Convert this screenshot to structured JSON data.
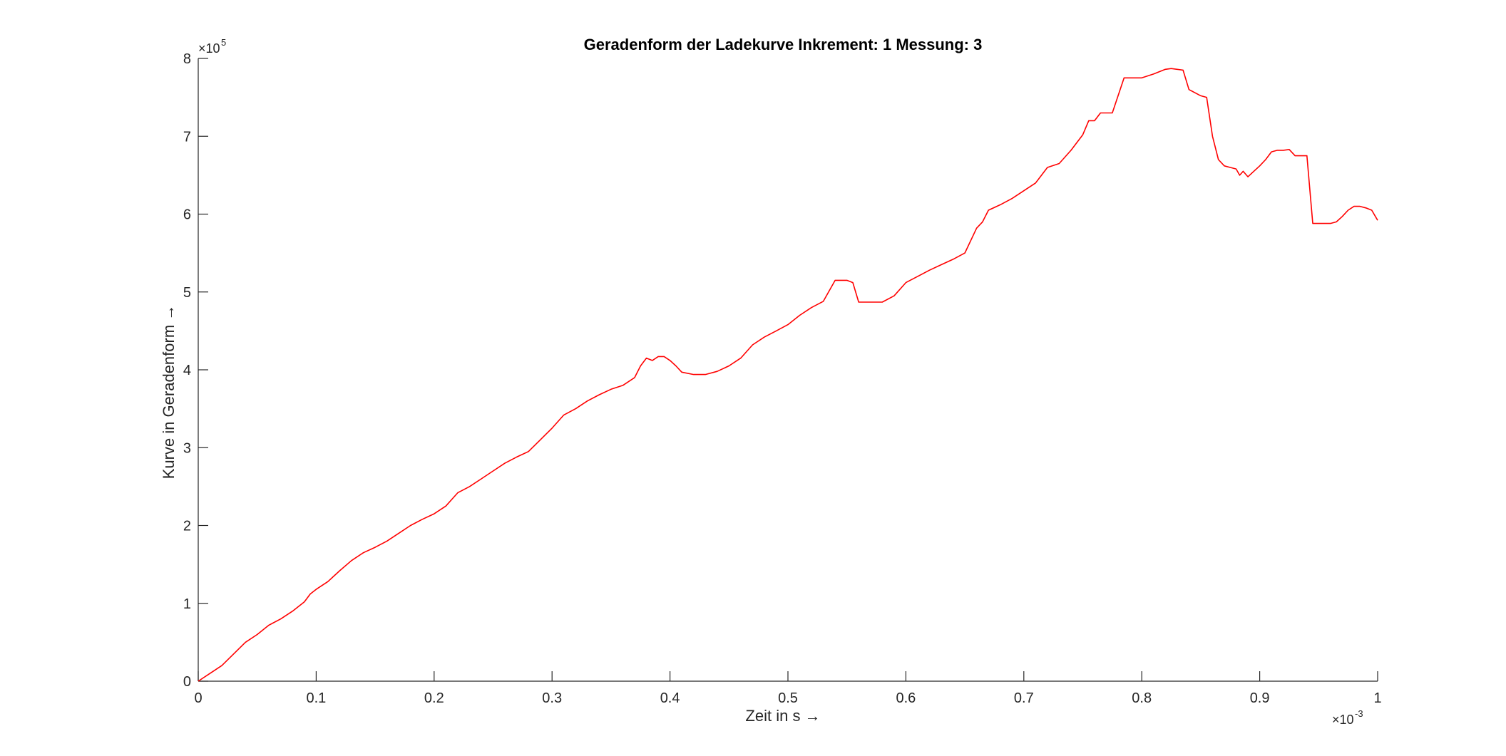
{
  "chart_data": {
    "type": "line",
    "title": "Geradenform der Ladekurve Inkrement: 1 Messung: 3",
    "xlabel": "Zeit in s →",
    "ylabel": "Kurve in Geradenform →",
    "x_exponent": {
      "base": "×10",
      "power": "-3"
    },
    "y_exponent": {
      "base": "×10",
      "power": "5"
    },
    "xlim": [
      0,
      1
    ],
    "ylim": [
      0,
      8
    ],
    "xticks": [
      0,
      0.1,
      0.2,
      0.3,
      0.4,
      0.5,
      0.6,
      0.7,
      0.8,
      0.9,
      1
    ],
    "xtick_labels": [
      "0",
      "0.1",
      "0.2",
      "0.3",
      "0.4",
      "0.5",
      "0.6",
      "0.7",
      "0.8",
      "0.9",
      "1"
    ],
    "yticks": [
      0,
      1,
      2,
      3,
      4,
      5,
      6,
      7,
      8
    ],
    "ytick_labels": [
      "0",
      "1",
      "2",
      "3",
      "4",
      "5",
      "6",
      "7",
      "8"
    ],
    "grid": false,
    "line_color": "#ff0000",
    "axis_color": "#262626",
    "series": [
      {
        "x": [
          0,
          0.01,
          0.02,
          0.03,
          0.04,
          0.05,
          0.06,
          0.07,
          0.08,
          0.09,
          0.095,
          0.1,
          0.11,
          0.115,
          0.12,
          0.13,
          0.14,
          0.15,
          0.16,
          0.17,
          0.18,
          0.19,
          0.2,
          0.21,
          0.22,
          0.23,
          0.24,
          0.25,
          0.26,
          0.27,
          0.28,
          0.29,
          0.3,
          0.31,
          0.32,
          0.33,
          0.34,
          0.35,
          0.36,
          0.37,
          0.375,
          0.38,
          0.385,
          0.39,
          0.395,
          0.4,
          0.405,
          0.41,
          0.42,
          0.43,
          0.44,
          0.45,
          0.46,
          0.47,
          0.48,
          0.49,
          0.5,
          0.51,
          0.52,
          0.53,
          0.54,
          0.545,
          0.55,
          0.555,
          0.56,
          0.57,
          0.58,
          0.59,
          0.6,
          0.61,
          0.62,
          0.63,
          0.64,
          0.65,
          0.66,
          0.665,
          0.67,
          0.68,
          0.69,
          0.7,
          0.71,
          0.72,
          0.73,
          0.74,
          0.75,
          0.755,
          0.76,
          0.765,
          0.775,
          0.785,
          0.795,
          0.8,
          0.81,
          0.82,
          0.825,
          0.83,
          0.835,
          0.84,
          0.85,
          0.855,
          0.86,
          0.865,
          0.87,
          0.875,
          0.88,
          0.883,
          0.886,
          0.89,
          0.895,
          0.9,
          0.905,
          0.91,
          0.915,
          0.92,
          0.925,
          0.93,
          0.935,
          0.94,
          0.945,
          0.95,
          0.96,
          0.965,
          0.97,
          0.975,
          0.98,
          0.985,
          0.99,
          0.995,
          1.0
        ],
        "y": [
          0,
          0.1,
          0.2,
          0.35,
          0.5,
          0.6,
          0.72,
          0.8,
          0.9,
          1.02,
          1.12,
          1.18,
          1.28,
          1.35,
          1.42,
          1.55,
          1.65,
          1.72,
          1.8,
          1.9,
          2.0,
          2.08,
          2.15,
          2.25,
          2.42,
          2.5,
          2.6,
          2.7,
          2.8,
          2.88,
          2.95,
          3.1,
          3.25,
          3.42,
          3.5,
          3.6,
          3.68,
          3.75,
          3.8,
          3.9,
          4.05,
          4.15,
          4.12,
          4.17,
          4.17,
          4.12,
          4.05,
          3.97,
          3.94,
          3.94,
          3.98,
          4.05,
          4.15,
          4.32,
          4.42,
          4.5,
          4.58,
          4.7,
          4.8,
          4.88,
          5.15,
          5.15,
          5.15,
          5.12,
          4.87,
          4.87,
          4.87,
          4.95,
          5.12,
          5.2,
          5.28,
          5.35,
          5.42,
          5.5,
          5.82,
          5.9,
          6.05,
          6.12,
          6.2,
          6.3,
          6.4,
          6.6,
          6.65,
          6.82,
          7.02,
          7.2,
          7.2,
          7.3,
          7.3,
          7.75,
          7.75,
          7.75,
          7.8,
          7.86,
          7.87,
          7.86,
          7.85,
          7.6,
          7.52,
          7.5,
          7.0,
          6.7,
          6.62,
          6.6,
          6.58,
          6.5,
          6.55,
          6.48,
          6.55,
          6.62,
          6.7,
          6.8,
          6.82,
          6.82,
          6.83,
          6.75,
          6.75,
          6.75,
          5.88,
          5.88,
          5.88,
          5.9,
          5.97,
          6.05,
          6.1,
          6.1,
          6.08,
          6.05,
          5.92
        ]
      }
    ]
  }
}
